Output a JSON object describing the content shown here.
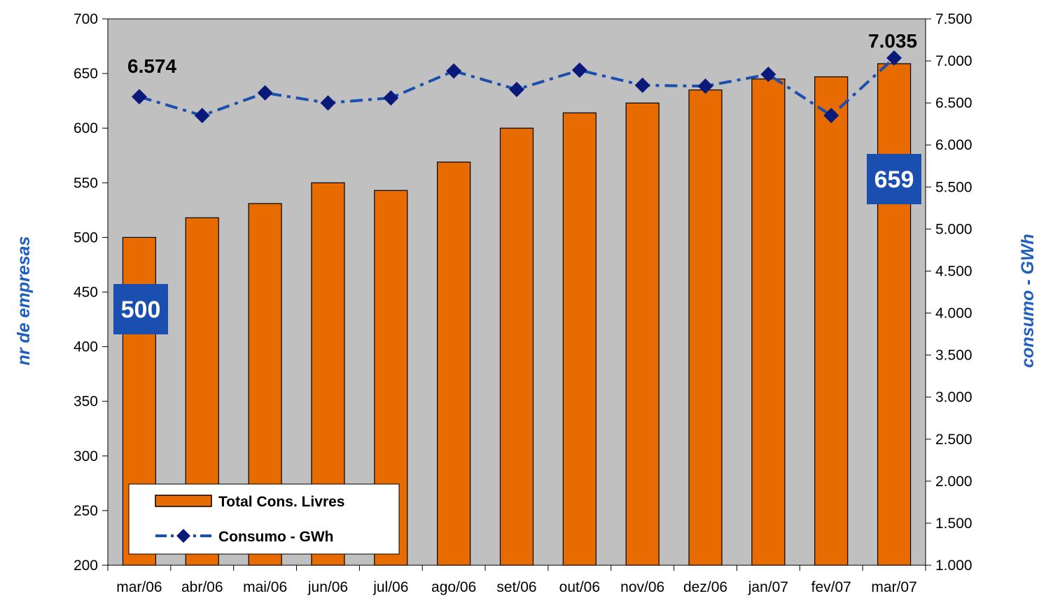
{
  "chart_data": {
    "type": "bar",
    "categories": [
      "mar/06",
      "abr/06",
      "mai/06",
      "jun/06",
      "jul/06",
      "ago/06",
      "set/06",
      "out/06",
      "nov/06",
      "dez/06",
      "jan/07",
      "fev/07",
      "mar/07"
    ],
    "series": [
      {
        "name": "Total Cons. Livres",
        "type": "bar",
        "axis": "left",
        "values": [
          500,
          518,
          531,
          550,
          543,
          569,
          600,
          614,
          623,
          635,
          645,
          647,
          659
        ]
      },
      {
        "name": "Consumo - GWh",
        "type": "line",
        "axis": "right",
        "values": [
          6574,
          6350,
          6620,
          6500,
          6560,
          6880,
          6660,
          6890,
          6710,
          6700,
          6840,
          6350,
          7035
        ]
      }
    ],
    "ylabel": "nr de empresas",
    "y2label": "consumo - GWh",
    "ylim": [
      200,
      700
    ],
    "y2lim": [
      1000,
      7500
    ],
    "yticks": [
      "200",
      "250",
      "300",
      "350",
      "400",
      "450",
      "500",
      "550",
      "600",
      "650",
      "700"
    ],
    "y2ticks": [
      "1.000",
      "1.500",
      "2.000",
      "2.500",
      "3.000",
      "3.500",
      "4.000",
      "4.500",
      "5.000",
      "5.500",
      "6.000",
      "6.500",
      "7.000",
      "7.500"
    ],
    "annotations": {
      "bar_first": "500",
      "bar_last": "659",
      "line_first": "6.574",
      "line_last": "7.035"
    },
    "legend_position": "bottom-left",
    "grid": false,
    "colors": {
      "plot_bg": "#c0c0c0",
      "bar": "#e86b00",
      "line": "#1a4fb0",
      "marker": "#0a1a7a",
      "callout": "#1a4fb0",
      "axis_title": "#1f5fbf"
    }
  }
}
